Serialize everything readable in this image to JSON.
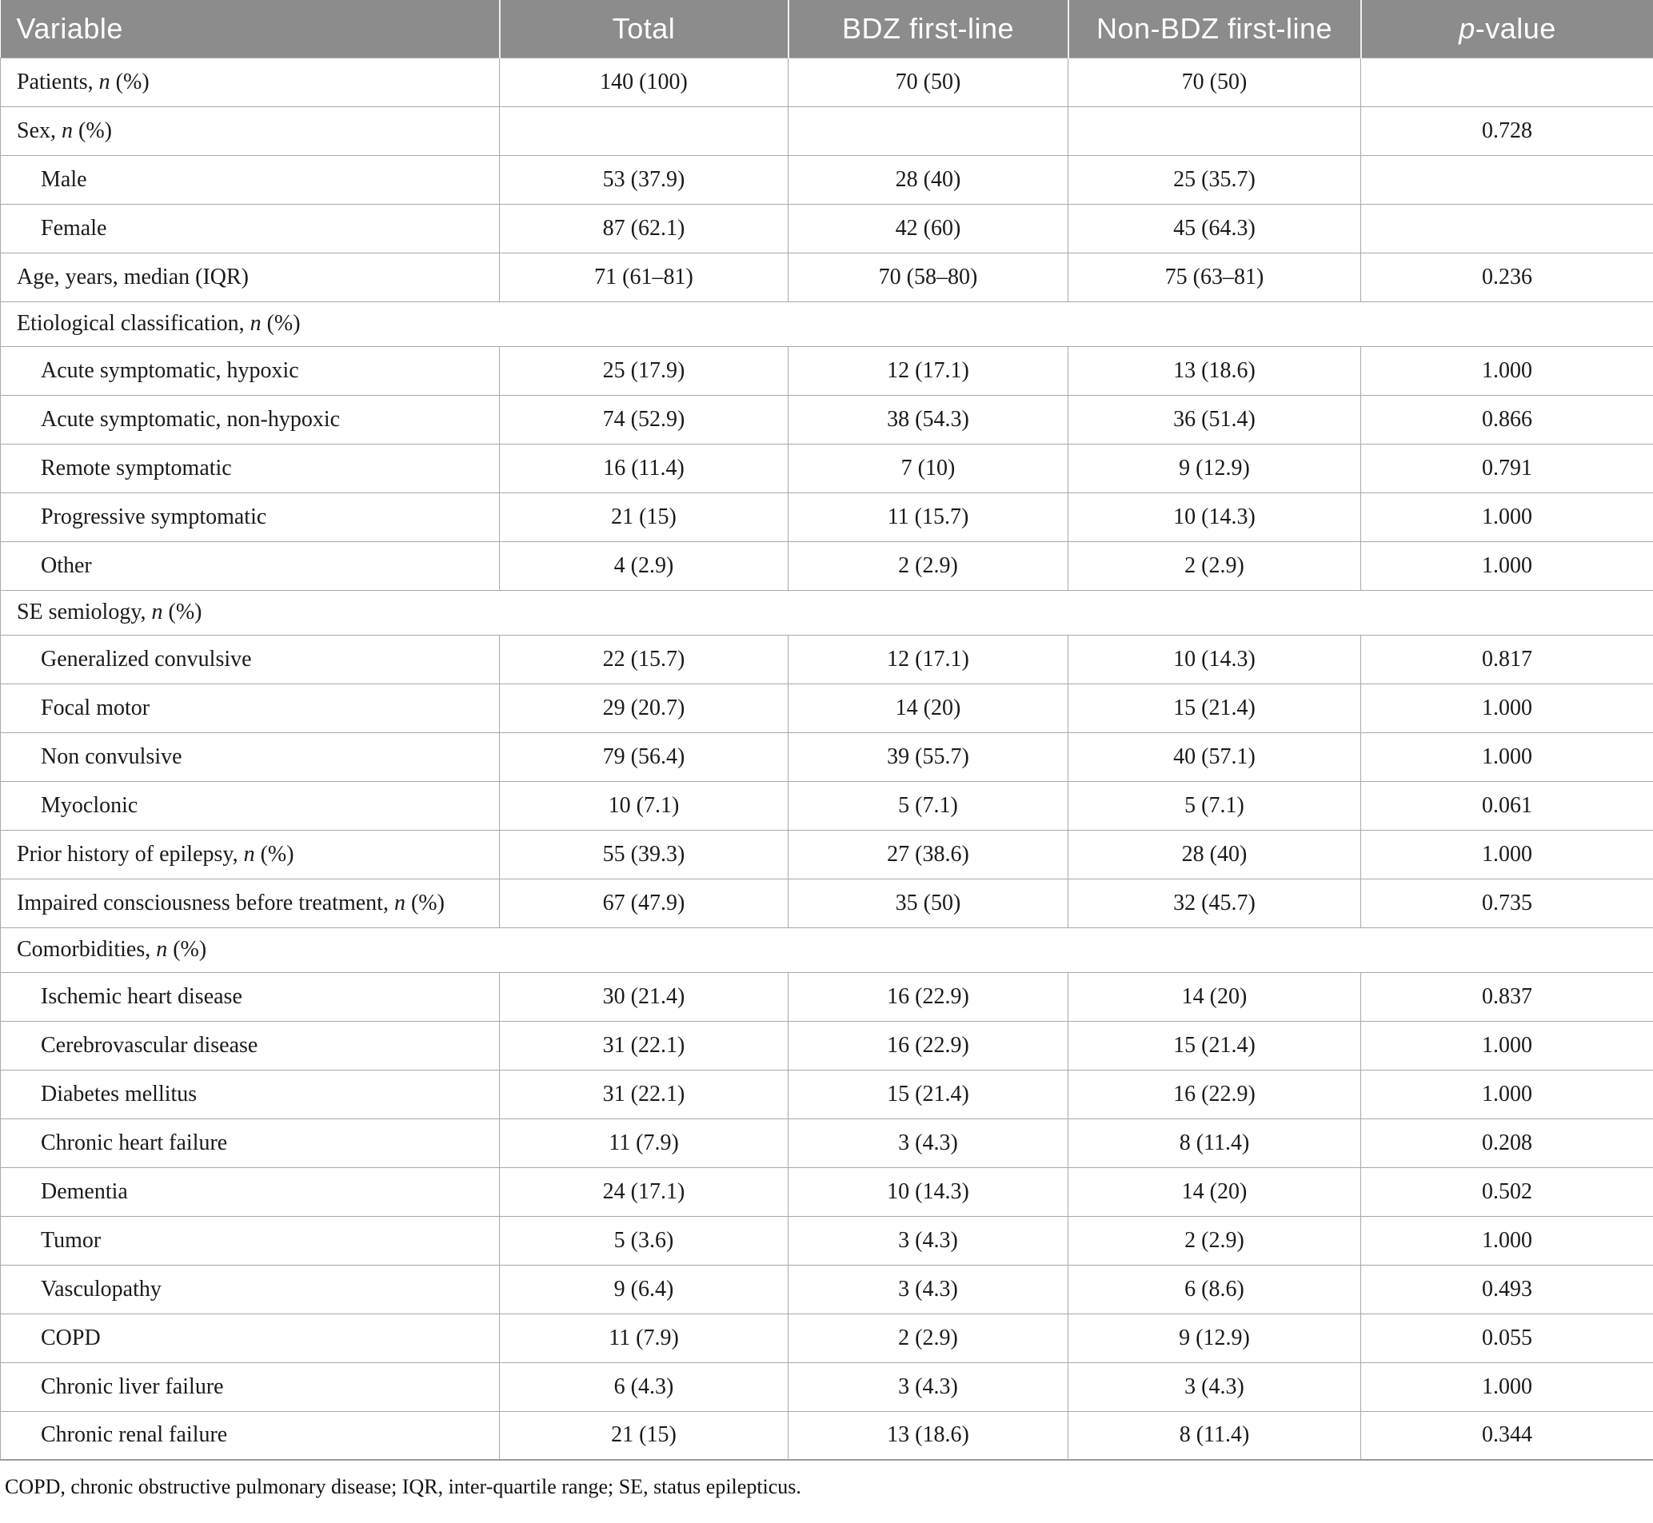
{
  "table": {
    "columns": {
      "variable": "Variable",
      "total": "Total",
      "bdz": "BDZ first-line",
      "nonbdz": "Non-BDZ first-line",
      "pvalue_html": "<i>p</i>-value"
    },
    "rows": [
      {
        "type": "data",
        "indent": false,
        "label_html": "Patients, <i>n</i> (%)",
        "values": [
          "140 (100)",
          "70 (50)",
          "70 (50)",
          ""
        ]
      },
      {
        "type": "data",
        "indent": false,
        "label_html": "Sex, <i>n</i> (%)",
        "values": [
          "",
          "",
          "",
          "0.728"
        ]
      },
      {
        "type": "data",
        "indent": true,
        "label_html": "Male",
        "values": [
          "53 (37.9)",
          "28 (40)",
          "25 (35.7)",
          ""
        ]
      },
      {
        "type": "data",
        "indent": true,
        "label_html": "Female",
        "values": [
          "87 (62.1)",
          "42 (60)",
          "45 (64.3)",
          ""
        ]
      },
      {
        "type": "data",
        "indent": false,
        "label_html": "Age, years, median (IQR)",
        "values": [
          "71 (61–81)",
          "70 (58–80)",
          "75 (63–81)",
          "0.236"
        ]
      },
      {
        "type": "section",
        "label_html": "Etiological classification, <i>n</i> (%)"
      },
      {
        "type": "data",
        "indent": true,
        "label_html": "Acute symptomatic, hypoxic",
        "values": [
          "25 (17.9)",
          "12 (17.1)",
          "13 (18.6)",
          "1.000"
        ]
      },
      {
        "type": "data",
        "indent": true,
        "label_html": "Acute symptomatic, non-hypoxic",
        "values": [
          "74 (52.9)",
          "38 (54.3)",
          "36 (51.4)",
          "0.866"
        ]
      },
      {
        "type": "data",
        "indent": true,
        "label_html": "Remote symptomatic",
        "values": [
          "16 (11.4)",
          "7 (10)",
          "9 (12.9)",
          "0.791"
        ]
      },
      {
        "type": "data",
        "indent": true,
        "label_html": "Progressive symptomatic",
        "values": [
          "21 (15)",
          "11 (15.7)",
          "10 (14.3)",
          "1.000"
        ]
      },
      {
        "type": "data",
        "indent": true,
        "label_html": "Other",
        "values": [
          "4 (2.9)",
          "2 (2.9)",
          "2 (2.9)",
          "1.000"
        ]
      },
      {
        "type": "section",
        "label_html": "SE semiology, <i>n</i> (%)"
      },
      {
        "type": "data",
        "indent": true,
        "label_html": "Generalized convulsive",
        "values": [
          "22 (15.7)",
          "12 (17.1)",
          "10 (14.3)",
          "0.817"
        ]
      },
      {
        "type": "data",
        "indent": true,
        "label_html": "Focal motor",
        "values": [
          "29 (20.7)",
          "14 (20)",
          "15 (21.4)",
          "1.000"
        ]
      },
      {
        "type": "data",
        "indent": true,
        "label_html": "Non convulsive",
        "values": [
          "79 (56.4)",
          "39 (55.7)",
          "40 (57.1)",
          "1.000"
        ]
      },
      {
        "type": "data",
        "indent": true,
        "label_html": "Myoclonic",
        "values": [
          "10 (7.1)",
          "5 (7.1)",
          "5 (7.1)",
          "0.061"
        ]
      },
      {
        "type": "data",
        "indent": false,
        "label_html": "Prior history of epilepsy, <i>n</i> (%)",
        "values": [
          "55 (39.3)",
          "27 (38.6)",
          "28 (40)",
          "1.000"
        ]
      },
      {
        "type": "data",
        "indent": false,
        "label_html": "Impaired consciousness before treatment, <i>n</i> (%)",
        "values": [
          "67 (47.9)",
          "35 (50)",
          "32 (45.7)",
          "0.735"
        ]
      },
      {
        "type": "section",
        "label_html": "Comorbidities, <i>n</i> (%)"
      },
      {
        "type": "data",
        "indent": true,
        "label_html": "Ischemic heart disease",
        "values": [
          "30 (21.4)",
          "16 (22.9)",
          "14 (20)",
          "0.837"
        ]
      },
      {
        "type": "data",
        "indent": true,
        "label_html": "Cerebrovascular disease",
        "values": [
          "31 (22.1)",
          "16 (22.9)",
          "15 (21.4)",
          "1.000"
        ]
      },
      {
        "type": "data",
        "indent": true,
        "label_html": "Diabetes mellitus",
        "values": [
          "31 (22.1)",
          "15 (21.4)",
          "16 (22.9)",
          "1.000"
        ]
      },
      {
        "type": "data",
        "indent": true,
        "label_html": "Chronic heart failure",
        "values": [
          "11 (7.9)",
          "3 (4.3)",
          "8 (11.4)",
          "0.208"
        ]
      },
      {
        "type": "data",
        "indent": true,
        "label_html": "Dementia",
        "values": [
          "24 (17.1)",
          "10 (14.3)",
          "14 (20)",
          "0.502"
        ]
      },
      {
        "type": "data",
        "indent": true,
        "label_html": "Tumor",
        "values": [
          "5 (3.6)",
          "3 (4.3)",
          "2 (2.9)",
          "1.000"
        ]
      },
      {
        "type": "data",
        "indent": true,
        "label_html": "Vasculopathy",
        "values": [
          "9 (6.4)",
          "3 (4.3)",
          "6 (8.6)",
          "0.493"
        ]
      },
      {
        "type": "data",
        "indent": true,
        "label_html": "COPD",
        "values": [
          "11 (7.9)",
          "2 (2.9)",
          "9 (12.9)",
          "0.055"
        ]
      },
      {
        "type": "data",
        "indent": true,
        "label_html": "Chronic liver failure",
        "values": [
          "6 (4.3)",
          "3 (4.3)",
          "3 (4.3)",
          "1.000"
        ]
      },
      {
        "type": "data",
        "indent": true,
        "label_html": "Chronic renal failure",
        "values": [
          "21 (15)",
          "13 (18.6)",
          "8 (11.4)",
          "0.344"
        ]
      }
    ]
  },
  "footnote": "COPD, chronic obstructive pulmonary disease; IQR, inter-quartile range; SE, status epilepticus.",
  "colors": {
    "header_bg": "#8c8c8c",
    "header_text": "#ffffff",
    "border": "#a9a9a9",
    "body_text": "#1a1a1a"
  }
}
